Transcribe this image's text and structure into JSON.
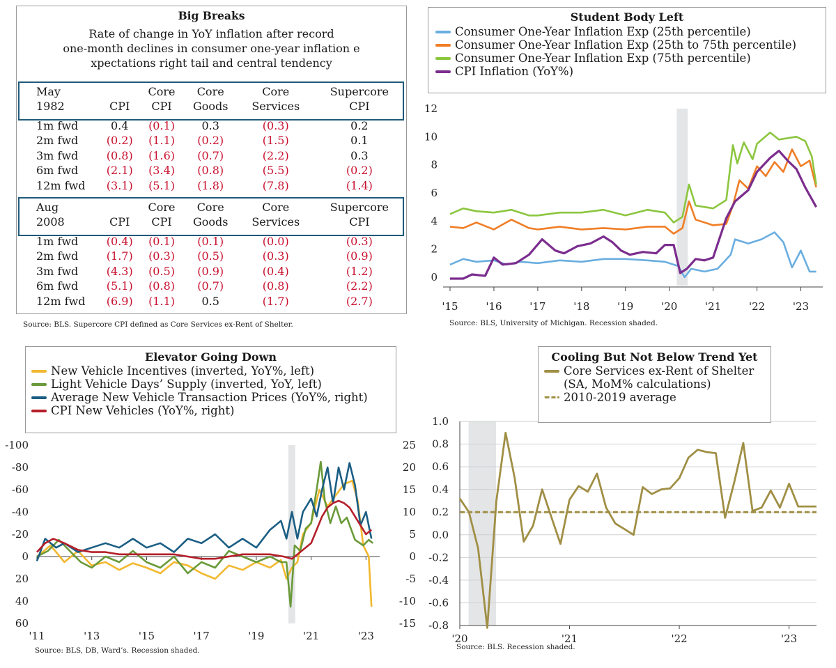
{
  "table": {
    "title": "Big Breaks",
    "subtitle_lines": [
      "Rate of change in YoY inflation after record",
      "one-month declines in consumer one-year inflation e",
      "xpectations right tail and central tendency"
    ],
    "columns": [
      "CPI",
      "Core CPI",
      "Core Goods",
      "Core Services",
      "Supercore CPI"
    ],
    "column_headers": [
      {
        "top": "",
        "bottom": "CPI"
      },
      {
        "top": "Core",
        "bottom": "CPI"
      },
      {
        "top": "Core",
        "bottom": "Goods"
      },
      {
        "top": "Core",
        "bottom": "Services"
      },
      {
        "top": "Supercore",
        "bottom": "CPI"
      }
    ],
    "sections": [
      {
        "label_top": "May",
        "label_bottom": "1982",
        "rows": [
          {
            "label": "1m fwd",
            "values": [
              "0.4",
              "(0.1)",
              "0.3",
              "(0.3)",
              "0.2"
            ]
          },
          {
            "label": "2m fwd",
            "values": [
              "(0.2)",
              "(1.1)",
              "(0.2)",
              "(1.5)",
              "0.1"
            ]
          },
          {
            "label": "3m fwd",
            "values": [
              "(0.8)",
              "(1.6)",
              "(0.7)",
              "(2.2)",
              "0.3"
            ]
          },
          {
            "label": "6m fwd",
            "values": [
              "(2.1)",
              "(3.4)",
              "(0.8)",
              "(5.5)",
              "(0.2)"
            ]
          },
          {
            "label": "12m fwd",
            "values": [
              "(3.1)",
              "(5.1)",
              "(1.8)",
              "(7.8)",
              "(1.4)"
            ]
          }
        ]
      },
      {
        "label_top": "Aug",
        "label_bottom": "2008",
        "rows": [
          {
            "label": "1m fwd",
            "values": [
              "(0.4)",
              "(0.1)",
              "(0.1)",
              "(0.0)",
              "(0.3)"
            ]
          },
          {
            "label": "2m fwd",
            "values": [
              "(1.7)",
              "(0.3)",
              "(0.5)",
              "(0.3)",
              "(0.9)"
            ]
          },
          {
            "label": "3m fwd",
            "values": [
              "(4.3)",
              "(0.5)",
              "(0.9)",
              "(0.4)",
              "(1.2)"
            ]
          },
          {
            "label": "6m fwd",
            "values": [
              "(5.1)",
              "(0.8)",
              "(0.7)",
              "(0.8)",
              "(2.2)"
            ]
          },
          {
            "label": "12m fwd",
            "values": [
              "(6.9)",
              "(1.1)",
              "0.5",
              "(1.7)",
              "(2.7)"
            ]
          }
        ]
      }
    ],
    "source": "Source: BLS. Supercore CPI defined as Core Services ex-Rent of Shelter."
  },
  "chart_data": [
    {
      "type": "line",
      "title": "Student Body Left",
      "legend": [
        "Consumer One-Year Inflation Exp (25th percentile)",
        "Consumer One-Year Inflation Exp (25th to 75th percentile)",
        "Consumer One-Year Inflation Exp (75th percentile)",
        "CPI Inflation (YoY%)"
      ],
      "colors": [
        "#6aaee0",
        "#f07e26",
        "#8cc63f",
        "#7b2d8e"
      ],
      "ylim": [
        0,
        12
      ],
      "yticks": [
        "0",
        "2",
        "4",
        "6",
        "8",
        "10",
        "12"
      ],
      "xlim": [
        2015,
        2023.5
      ],
      "xticks": [
        "'15",
        "'16",
        "'17",
        "'18",
        "'19",
        "'20",
        "'21",
        "'22",
        "'23"
      ],
      "recession": [
        2020.17,
        2020.42
      ],
      "series": [
        {
          "name": "Consumer One-Year Inflation Exp (25th percentile)",
          "x": [
            2015,
            2015.3,
            2015.6,
            2016,
            2016.3,
            2016.6,
            2017,
            2017.5,
            2018,
            2018.5,
            2019,
            2019.5,
            2019.9,
            2020.2,
            2020.35,
            2020.5,
            2020.8,
            2021.1,
            2021.4,
            2021.5,
            2021.8,
            2022.1,
            2022.4,
            2022.6,
            2022.8,
            2023,
            2023.2,
            2023.35
          ],
          "values": [
            0.9,
            1.3,
            1.1,
            1.2,
            0.9,
            1.1,
            1.0,
            1.2,
            1.1,
            1.3,
            1.3,
            1.2,
            1.1,
            0.8,
            0.0,
            0.6,
            0.4,
            0.6,
            1.6,
            2.7,
            2.4,
            2.7,
            3.2,
            2.5,
            0.7,
            1.9,
            0.4,
            0.4
          ]
        },
        {
          "name": "Consumer One-Year Inflation Exp (25th to 75th percentile)",
          "x": [
            2015,
            2015.3,
            2015.6,
            2016,
            2016.4,
            2016.8,
            2017,
            2017.5,
            2018,
            2018.5,
            2019,
            2019.5,
            2019.9,
            2020.1,
            2020.3,
            2020.45,
            2020.6,
            2021,
            2021.3,
            2021.45,
            2021.6,
            2021.8,
            2022,
            2022.2,
            2022.4,
            2022.6,
            2022.8,
            2023,
            2023.2,
            2023.35
          ],
          "values": [
            3.6,
            3.5,
            3.9,
            3.4,
            4.1,
            3.5,
            3.4,
            3.6,
            3.4,
            3.5,
            3.4,
            3.6,
            3.6,
            3.1,
            3.5,
            5.4,
            4.1,
            3.7,
            3.8,
            5.1,
            6.9,
            6.3,
            7.9,
            7.2,
            8.2,
            7.5,
            9.1,
            7.9,
            8.3,
            6.4
          ]
        },
        {
          "name": "Consumer One-Year Inflation Exp (75th percentile)",
          "x": [
            2015,
            2015.3,
            2015.6,
            2016,
            2016.4,
            2016.8,
            2017,
            2017.5,
            2018,
            2018.5,
            2019,
            2019.5,
            2019.9,
            2020.1,
            2020.3,
            2020.45,
            2020.6,
            2021,
            2021.3,
            2021.45,
            2021.55,
            2021.7,
            2021.9,
            2022,
            2022.3,
            2022.5,
            2022.7,
            2022.9,
            2023.1,
            2023.25,
            2023.35
          ],
          "values": [
            4.5,
            4.9,
            4.7,
            4.6,
            4.8,
            4.4,
            4.4,
            4.6,
            4.6,
            4.8,
            4.4,
            4.8,
            4.6,
            3.9,
            4.3,
            6.6,
            5.1,
            4.9,
            5.5,
            9.4,
            8.1,
            9.6,
            8.4,
            9.5,
            10.3,
            9.8,
            9.9,
            10.0,
            9.7,
            8.6,
            6.6
          ]
        },
        {
          "name": "CPI Inflation (YoY%)",
          "x": [
            2015,
            2015.3,
            2015.5,
            2015.8,
            2016,
            2016.2,
            2016.5,
            2016.8,
            2017.1,
            2017.4,
            2017.6,
            2017.9,
            2018.2,
            2018.5,
            2018.7,
            2018.9,
            2019.1,
            2019.4,
            2019.7,
            2019.9,
            2020.1,
            2020.25,
            2020.4,
            2020.6,
            2020.8,
            2021,
            2021.3,
            2021.5,
            2021.8,
            2022,
            2022.3,
            2022.5,
            2022.7,
            2022.9,
            2023.1,
            2023.35
          ],
          "values": [
            -0.1,
            -0.1,
            0.2,
            0.1,
            1.4,
            0.9,
            1.0,
            1.6,
            2.7,
            1.9,
            1.7,
            2.2,
            2.4,
            2.9,
            2.5,
            1.9,
            1.6,
            1.8,
            1.7,
            2.3,
            2.3,
            0.3,
            0.6,
            1.3,
            1.2,
            1.4,
            4.2,
            5.4,
            6.2,
            7.5,
            8.5,
            9.0,
            8.3,
            7.7,
            6.4,
            5.0
          ]
        }
      ],
      "source": "Source: BLS, University of Michigan. Recession shaded."
    },
    {
      "type": "line",
      "title": "Elevator Going Down",
      "legend": [
        "New Vehicle Incentives (inverted, YoY%, left)",
        "Light Vehicle Days’ Supply (inverted, YoY, left)",
        "Average New Vehicle Transaction Prices (YoY%, right)",
        "CPI New Vehicles (YoY%, right)"
      ],
      "colors": [
        "#f2b830",
        "#6a9a3a",
        "#1b5e84",
        "#b51f2a"
      ],
      "left_axis": {
        "ylim": [
          60,
          -100
        ],
        "yticks": [
          "-100",
          "-80",
          "-60",
          "-40",
          "-20",
          "0",
          "20",
          "40",
          "60"
        ]
      },
      "right_axis": {
        "ylim": [
          -15,
          25
        ],
        "yticks": [
          "25",
          "20",
          "15",
          "10",
          "5",
          "0",
          "-5",
          "-10",
          "-15"
        ]
      },
      "xlim": [
        2011,
        2023.5
      ],
      "xticks": [
        "'11",
        "'13",
        "'15",
        "'17",
        "'19",
        "'21",
        "'23"
      ],
      "recession": [
        2020.17,
        2020.42
      ],
      "series": [
        {
          "name": "New Vehicle Incentives (inverted, YoY%, left)",
          "axis": "left",
          "x": [
            2011,
            2011.5,
            2012,
            2012.5,
            2013,
            2013.5,
            2014,
            2014.5,
            2015,
            2015.5,
            2016,
            2016.5,
            2017,
            2017.5,
            2018,
            2018.5,
            2019,
            2019.5,
            2019.9,
            2020.1,
            2020.3,
            2020.5,
            2020.7,
            2021,
            2021.3,
            2021.6,
            2021.9,
            2022.2,
            2022.5,
            2022.7,
            2022.9,
            2023.1,
            2023.2
          ],
          "values": [
            0,
            -10,
            5,
            -5,
            8,
            5,
            12,
            6,
            10,
            15,
            5,
            8,
            15,
            20,
            8,
            12,
            5,
            10,
            3,
            20,
            10,
            5,
            -20,
            -30,
            -60,
            -45,
            -55,
            -65,
            -68,
            -50,
            -10,
            0,
            45
          ]
        },
        {
          "name": "Light Vehicle Days’ Supply (inverted, YoY, left)",
          "axis": "left",
          "x": [
            2011,
            2011.4,
            2011.8,
            2012.2,
            2012.6,
            2013,
            2013.5,
            2014,
            2014.5,
            2015,
            2015.5,
            2016,
            2016.5,
            2017,
            2017.5,
            2018,
            2018.5,
            2019,
            2019.5,
            2019.9,
            2020.1,
            2020.25,
            2020.4,
            2020.6,
            2020.8,
            2021,
            2021.2,
            2021.35,
            2021.5,
            2021.7,
            2021.9,
            2022.1,
            2022.3,
            2022.6,
            2022.9,
            2023.1,
            2023.25
          ],
          "values": [
            0,
            -5,
            -15,
            -5,
            5,
            10,
            0,
            5,
            -5,
            5,
            10,
            0,
            15,
            5,
            10,
            -5,
            0,
            5,
            0,
            5,
            5,
            45,
            -10,
            -5,
            -25,
            -30,
            -60,
            -85,
            -50,
            -30,
            -45,
            -30,
            -35,
            -15,
            -10,
            -15,
            -12
          ]
        },
        {
          "name": "Average New Vehicle Transaction Prices (YoY%, right)",
          "axis": "right",
          "x": [
            2011,
            2011.3,
            2011.7,
            2012,
            2012.5,
            2013,
            2013.5,
            2014,
            2014.5,
            2015,
            2015.5,
            2016,
            2016.5,
            2017,
            2017.5,
            2018,
            2018.5,
            2019,
            2019.5,
            2019.9,
            2020.1,
            2020.3,
            2020.5,
            2020.7,
            2021,
            2021.2,
            2021.4,
            2021.6,
            2021.8,
            2022,
            2022.2,
            2022.4,
            2022.6,
            2022.8,
            2023,
            2023.2
          ],
          "values": [
            -1,
            4,
            2,
            3,
            1,
            2,
            3,
            2,
            4,
            2,
            3,
            1,
            4,
            3,
            5,
            2,
            4,
            2,
            6,
            8,
            4,
            10,
            4,
            10,
            13,
            9,
            15,
            20,
            12,
            20,
            15,
            21,
            16,
            7,
            10,
            4
          ]
        },
        {
          "name": "CPI New Vehicles (YoY%, right)",
          "axis": "right",
          "x": [
            2011,
            2011.3,
            2011.6,
            2012,
            2012.5,
            2013,
            2013.5,
            2014,
            2014.5,
            2015,
            2015.5,
            2016,
            2016.5,
            2017,
            2017.5,
            2018,
            2018.5,
            2019,
            2019.5,
            2020,
            2020.3,
            2020.6,
            2021,
            2021.2,
            2021.4,
            2021.6,
            2021.8,
            2022,
            2022.2,
            2022.4,
            2022.6,
            2022.8,
            2023,
            2023.2
          ],
          "values": [
            1,
            3,
            4,
            3,
            1.5,
            1,
            1,
            0.5,
            0.5,
            0.5,
            0.5,
            0.5,
            0,
            -0.5,
            -0.5,
            0,
            0.5,
            0.5,
            0.5,
            0,
            -0.5,
            1,
            3,
            6,
            9,
            11,
            12,
            12.5,
            12,
            11,
            9,
            7,
            5,
            6
          ]
        }
      ],
      "source": "Source: BLS, DB, Ward’s. Recession shaded."
    },
    {
      "type": "line",
      "title": "Cooling But Not Below Trend Yet",
      "legend": [
        "Core Services ex-Rent of Shelter",
        "(SA, MoM% calculations)",
        "2010-2019 average"
      ],
      "colors": [
        "#a08f45",
        "#a08f45"
      ],
      "ylim": [
        -0.8,
        1.0
      ],
      "yticks": [
        "1.0",
        "0.8",
        "0.6",
        "0.4",
        "0.2",
        "0.0",
        "-0.2",
        "-0.4",
        "-0.6",
        "-0.8"
      ],
      "xlim": [
        2020,
        2023.25
      ],
      "xticks": [
        "'20",
        "'21",
        "'22",
        "'23"
      ],
      "recession": [
        2020.08,
        2020.33
      ],
      "series": [
        {
          "name": "Core Services ex-Rent of Shelter (SA, MoM% calculations)",
          "x": [
            2020,
            2020.083,
            2020.167,
            2020.25,
            2020.333,
            2020.417,
            2020.5,
            2020.583,
            2020.667,
            2020.75,
            2020.833,
            2020.917,
            2021,
            2021.083,
            2021.167,
            2021.25,
            2021.333,
            2021.417,
            2021.5,
            2021.583,
            2021.667,
            2021.75,
            2021.833,
            2021.917,
            2022,
            2022.083,
            2022.167,
            2022.25,
            2022.333,
            2022.417,
            2022.5,
            2022.583,
            2022.667,
            2022.75,
            2022.833,
            2022.917,
            2023,
            2023.083,
            2023.167,
            2023.25
          ],
          "values": [
            0.32,
            0.2,
            -0.12,
            -0.82,
            0.3,
            0.9,
            0.5,
            -0.06,
            0.08,
            0.4,
            0.16,
            -0.08,
            0.31,
            0.43,
            0.38,
            0.54,
            0.24,
            0.1,
            0.05,
            0.0,
            0.42,
            0.36,
            0.4,
            0.41,
            0.5,
            0.68,
            0.75,
            0.73,
            0.72,
            0.15,
            0.46,
            0.81,
            0.21,
            0.24,
            0.39,
            0.24,
            0.45,
            0.25,
            0.25,
            0.25
          ]
        },
        {
          "name": "2010-2019 average",
          "values": [
            0.2
          ]
        }
      ],
      "source": "Source: BLS. Recession shaded."
    }
  ]
}
